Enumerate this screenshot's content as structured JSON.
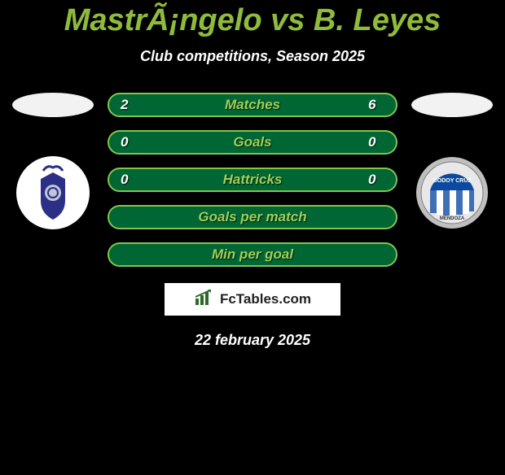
{
  "title": {
    "text": "MastrÃ¡ngelo vs B. Leyes",
    "color": "#8fbb3c",
    "fontsize": 38
  },
  "subtitle": {
    "text": "Club competitions, Season 2025",
    "color": "#ffffff",
    "fontsize": 18
  },
  "stats": {
    "bar_bg": "#006633",
    "bar_border": "#84c44b",
    "label_color": "#9fcf58",
    "value_color": "#ffffff",
    "label_fontsize": 17,
    "value_fontsize": 17,
    "rows": [
      {
        "left": "2",
        "label": "Matches",
        "right": "6"
      },
      {
        "left": "0",
        "label": "Goals",
        "right": "0"
      },
      {
        "left": "0",
        "label": "Hattricks",
        "right": "0"
      },
      {
        "left": "",
        "label": "Goals per match",
        "right": ""
      },
      {
        "left": "",
        "label": "Min per goal",
        "right": ""
      }
    ]
  },
  "left_crest": {
    "bg": "#ffffff",
    "primary": "#2b2f86",
    "accent": "#c0c6d8"
  },
  "right_crest": {
    "ring": "#bfbfbf",
    "top": "#0b4aa0",
    "stripes": [
      "#3e6fb7",
      "#ffffff"
    ]
  },
  "brand": {
    "name": "FcTables.com",
    "icon_color": "#2a6b2a",
    "bg": "#ffffff"
  },
  "date": {
    "text": "22 february 2025",
    "color": "#ffffff",
    "fontsize": 18
  }
}
